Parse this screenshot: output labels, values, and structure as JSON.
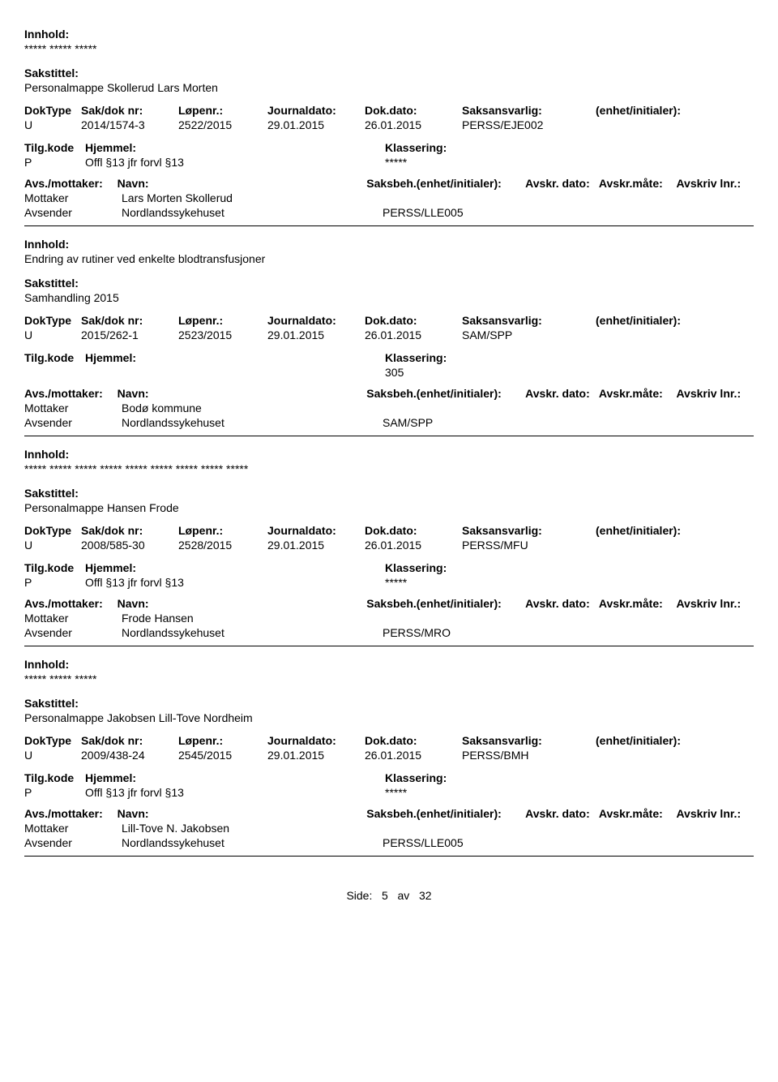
{
  "labels": {
    "innhold": "Innhold:",
    "sakstittel": "Sakstittel:",
    "doktype": "DokType",
    "sakdok": "Sak/dok nr:",
    "lopenr": "Løpenr.:",
    "journaldato": "Journaldato:",
    "dokdato": "Dok.dato:",
    "saksansvarlig": "Saksansvarlig:",
    "enhet": "(enhet/initialer):",
    "tilgkode": "Tilg.kode",
    "hjemmel": "Hjemmel:",
    "klassering": "Klassering:",
    "avsmottaker": "Avs./mottaker:",
    "navn": "Navn:",
    "saksbeh": "Saksbeh.(enhet/initialer):",
    "avskrdato": "Avskr. dato:",
    "avskrmate": "Avskr.måte:",
    "avskrivlnr": "Avskriv lnr.:",
    "mottaker": "Mottaker",
    "avsender": "Avsender"
  },
  "records": [
    {
      "innhold": "***** ***** *****",
      "sakstittel": "Personalmappe Skollerud Lars Morten",
      "doktype": "U",
      "sakdok": "2014/1574-3",
      "lopenr": "2522/2015",
      "jdate": "29.01.2015",
      "ddate": "26.01.2015",
      "saksans": "PERSS/EJE002",
      "tilgkode": "P",
      "hjemmel": "Offl §13 jfr forvl §13",
      "klassering": "*****",
      "parties": [
        {
          "role": "Mottaker",
          "name": "Lars Morten Skollerud",
          "code": ""
        },
        {
          "role": "Avsender",
          "name": "Nordlandssykehuset",
          "code": "PERSS/LLE005"
        }
      ]
    },
    {
      "innhold": "Endring av rutiner ved enkelte blodtransfusjoner",
      "sakstittel": "Samhandling 2015",
      "doktype": "U",
      "sakdok": "2015/262-1",
      "lopenr": "2523/2015",
      "jdate": "29.01.2015",
      "ddate": "26.01.2015",
      "saksans": "SAM/SPP",
      "tilgkode": "",
      "hjemmel": "",
      "klassering": "305",
      "parties": [
        {
          "role": "Mottaker",
          "name": "Bodø kommune",
          "code": ""
        },
        {
          "role": "Avsender",
          "name": "Nordlandssykehuset",
          "code": "SAM/SPP"
        }
      ]
    },
    {
      "innhold": "***** ***** ***** ***** ***** ***** ***** ***** *****",
      "sakstittel": "Personalmappe Hansen Frode",
      "doktype": "U",
      "sakdok": "2008/585-30",
      "lopenr": "2528/2015",
      "jdate": "29.01.2015",
      "ddate": "26.01.2015",
      "saksans": "PERSS/MFU",
      "tilgkode": "P",
      "hjemmel": "Offl §13 jfr forvl §13",
      "klassering": "*****",
      "parties": [
        {
          "role": "Mottaker",
          "name": "Frode Hansen",
          "code": ""
        },
        {
          "role": "Avsender",
          "name": "Nordlandssykehuset",
          "code": "PERSS/MRO"
        }
      ]
    },
    {
      "innhold": "***** ***** *****",
      "sakstittel": "Personalmappe Jakobsen Lill-Tove Nordheim",
      "doktype": "U",
      "sakdok": "2009/438-24",
      "lopenr": "2545/2015",
      "jdate": "29.01.2015",
      "ddate": "26.01.2015",
      "saksans": "PERSS/BMH",
      "tilgkode": "P",
      "hjemmel": "Offl §13 jfr forvl §13",
      "klassering": "*****",
      "parties": [
        {
          "role": "Mottaker",
          "name": "Lill-Tove N. Jakobsen",
          "code": ""
        },
        {
          "role": "Avsender",
          "name": "Nordlandssykehuset",
          "code": "PERSS/LLE005"
        }
      ]
    }
  ],
  "footer": {
    "prefix": "Side:",
    "page": "5",
    "sep": "av",
    "total": "32"
  }
}
